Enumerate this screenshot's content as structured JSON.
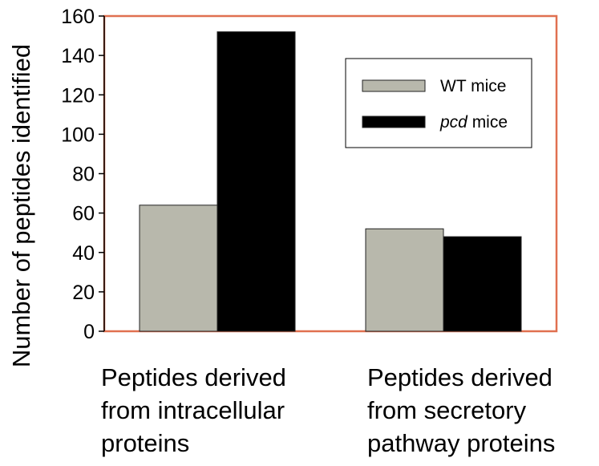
{
  "chart_data": {
    "type": "bar",
    "title": "",
    "ylabel": "Number of peptides identified",
    "xlabel": "",
    "ylim": [
      0,
      160
    ],
    "yticks": [
      0,
      20,
      40,
      60,
      80,
      100,
      120,
      140,
      160
    ],
    "categories": [
      [
        "Peptides derived",
        "from intracellular",
        "proteins"
      ],
      [
        "Peptides derived",
        "from secretory",
        "pathway proteins"
      ]
    ],
    "series": [
      {
        "name": "WT mice",
        "name_parts": [
          {
            "text": "WT",
            "italic": false
          },
          {
            "text": " mice",
            "italic": false
          }
        ],
        "values": [
          64,
          52
        ],
        "color": "#b8b8ac"
      },
      {
        "name": "pcd mice",
        "name_parts": [
          {
            "text": "pcd",
            "italic": true
          },
          {
            "text": " mice",
            "italic": false
          }
        ],
        "values": [
          152,
          48
        ],
        "color": "#000000"
      }
    ],
    "plot_border_color": "#e07050",
    "grid": false,
    "legend_position": "top-right"
  }
}
